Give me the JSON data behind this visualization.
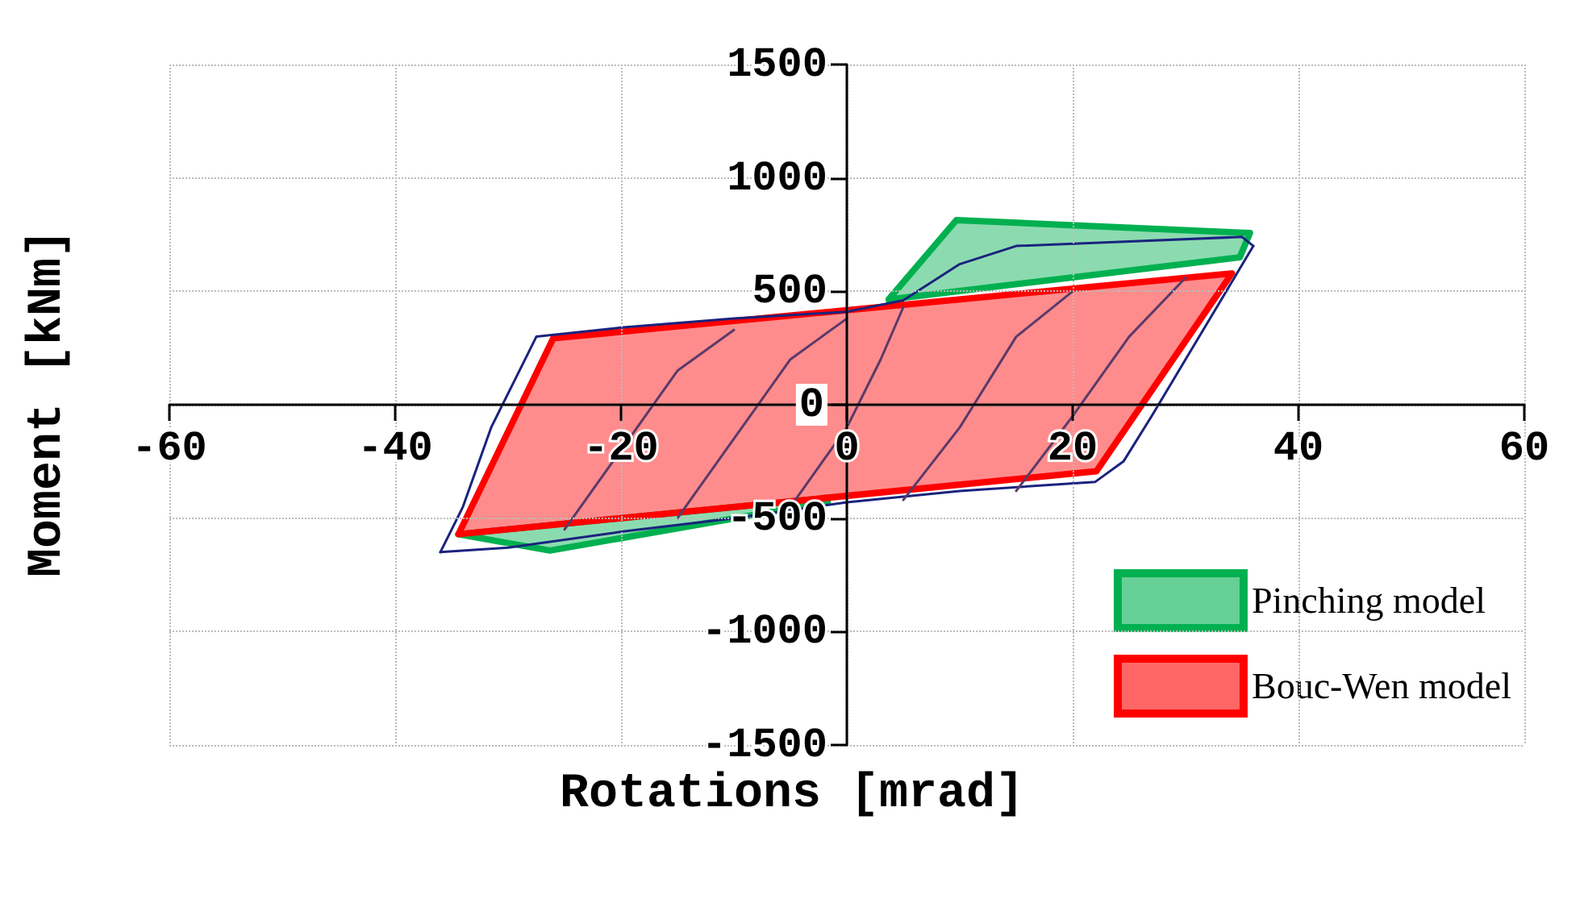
{
  "chart_data": {
    "type": "line",
    "xlabel": "Rotations [mrad]",
    "ylabel": "Moment [kNm]",
    "xlim": [
      -60,
      60
    ],
    "xticks": [
      -60,
      -40,
      -20,
      0,
      20,
      40,
      60
    ],
    "ylim": [
      -1500,
      1500
    ],
    "yticks": [
      -1500,
      -1000,
      -500,
      0,
      500,
      1000,
      1500
    ],
    "grid": true,
    "legend": "bottom right",
    "line_style": "solid",
    "series": [
      {
        "color": "#1a237e",
        "x": [
          -36,
          -34,
          -31.5,
          -29,
          -27.5,
          -20,
          -10,
          0,
          5,
          10,
          15,
          25,
          35,
          36
        ],
        "values": [
          -650,
          -450,
          -100,
          150,
          300,
          340,
          380,
          410,
          460,
          620,
          700,
          720,
          740,
          700
        ]
      },
      {
        "color": "#1a237e",
        "x": [
          36,
          33,
          30,
          27,
          24.5,
          22,
          10,
          0,
          -10,
          -20,
          -30,
          -36
        ],
        "values": [
          700,
          450,
          200,
          -50,
          -250,
          -340,
          -380,
          -430,
          -500,
          -560,
          -630,
          -650
        ]
      },
      {
        "color": "#5a3a6a",
        "x": [
          -25,
          -20,
          -15,
          -10,
          null,
          -15,
          -10,
          -5,
          0,
          null,
          -5,
          0,
          3,
          5,
          null,
          5,
          10,
          15,
          20,
          null,
          15,
          20,
          25,
          30
        ],
        "values": [
          -550,
          -200,
          150,
          330,
          null,
          -500,
          -150,
          200,
          380,
          null,
          -450,
          -100,
          200,
          430,
          null,
          -420,
          -100,
          300,
          500,
          null,
          -380,
          -50,
          300,
          560
        ]
      },
      {
        "type": "area",
        "name": "Pinching model",
        "color": "#00b050",
        "x": [
          3.7,
          9.7,
          35.7,
          34.8
        ],
        "values": [
          464,
          814,
          757,
          650
        ]
      },
      {
        "type": "area",
        "color": "#00b050",
        "x": [
          -34.4,
          -26.3,
          -1.7,
          -1.7
        ],
        "values": [
          -571,
          -643,
          -429,
          -410
        ]
      },
      {
        "type": "area",
        "name": "Bouc-Wen model",
        "color": "#ff0000",
        "x": [
          -26,
          -34.4,
          22.1,
          34.1
        ],
        "values": [
          293,
          -571,
          -293,
          579
        ]
      }
    ]
  }
}
